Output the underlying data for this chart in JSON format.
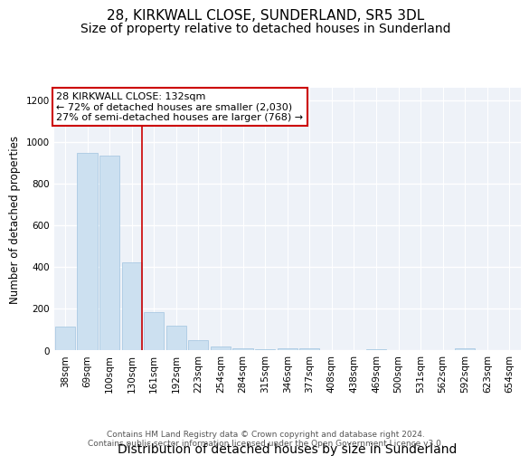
{
  "title": "28, KIRKWALL CLOSE, SUNDERLAND, SR5 3DL",
  "subtitle": "Size of property relative to detached houses in Sunderland",
  "xlabel": "Distribution of detached houses by size in Sunderland",
  "ylabel": "Number of detached properties",
  "categories": [
    "38sqm",
    "69sqm",
    "100sqm",
    "130sqm",
    "161sqm",
    "192sqm",
    "223sqm",
    "254sqm",
    "284sqm",
    "315sqm",
    "346sqm",
    "377sqm",
    "408sqm",
    "438sqm",
    "469sqm",
    "500sqm",
    "531sqm",
    "562sqm",
    "592sqm",
    "623sqm",
    "654sqm"
  ],
  "values": [
    115,
    950,
    935,
    425,
    185,
    120,
    50,
    18,
    10,
    8,
    12,
    12,
    0,
    0,
    8,
    0,
    0,
    0,
    12,
    0,
    0
  ],
  "bar_color": "#cce0f0",
  "bar_edgecolor": "#a0c4e0",
  "highlight_line_color": "#cc0000",
  "highlight_line_index": 3,
  "annotation_text_line1": "28 KIRKWALL CLOSE: 132sqm",
  "annotation_text_line2": "← 72% of detached houses are smaller (2,030)",
  "annotation_text_line3": "27% of semi-detached houses are larger (768) →",
  "ylim": [
    0,
    1260
  ],
  "yticks": [
    0,
    200,
    400,
    600,
    800,
    1000,
    1200
  ],
  "background_color": "#eef2f8",
  "grid_color": "#ffffff",
  "footer_text": "Contains HM Land Registry data © Crown copyright and database right 2024.\nContains public sector information licensed under the Open Government Licence v3.0.",
  "title_fontsize": 11,
  "subtitle_fontsize": 10,
  "xlabel_fontsize": 10,
  "ylabel_fontsize": 8.5,
  "tick_fontsize": 7.5,
  "annotation_fontsize": 8,
  "footer_fontsize": 6.5
}
